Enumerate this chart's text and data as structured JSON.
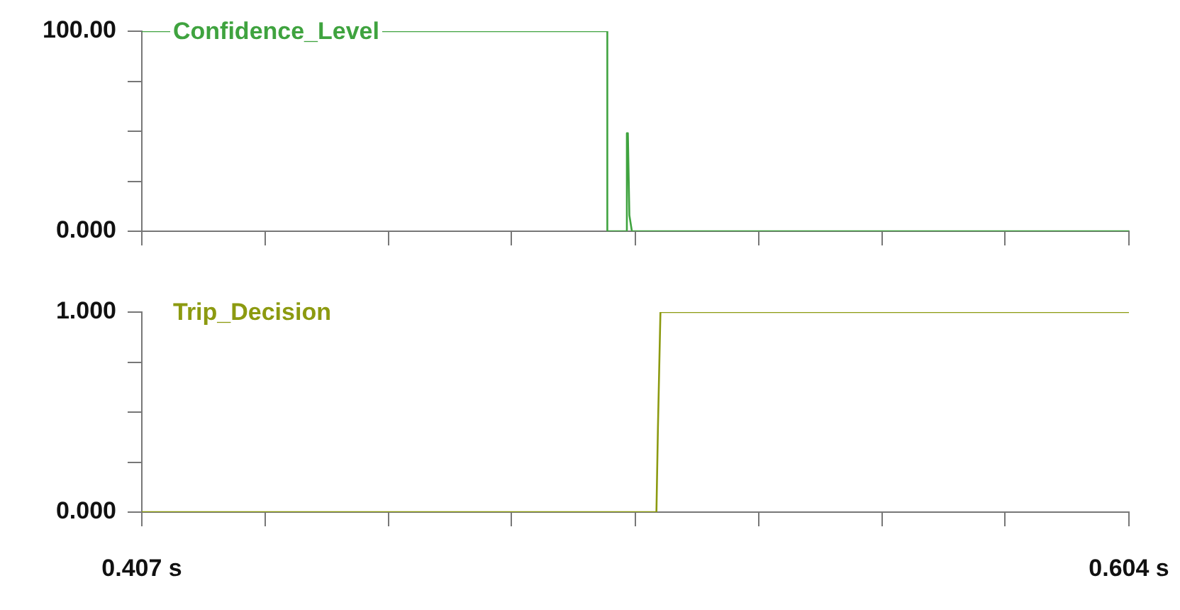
{
  "chart_data": [
    {
      "type": "line",
      "tick_labels": "y",
      "marker": "none",
      "xlim": [
        0.407,
        0.604
      ],
      "ylim": [
        0,
        100
      ],
      "xticks": [
        {
          "value": 0.407,
          "label": null
        },
        {
          "value": 0.4316,
          "label": null
        },
        {
          "value": 0.4563,
          "label": null
        },
        {
          "value": 0.4808,
          "label": null
        },
        {
          "value": 0.5055,
          "label": null
        },
        {
          "value": 0.5301,
          "label": null
        },
        {
          "value": 0.5548,
          "label": null
        },
        {
          "value": 0.5793,
          "label": null
        },
        {
          "value": 0.604,
          "label": null
        }
      ],
      "yticks": [
        {
          "value": 0,
          "label": "0.000"
        },
        {
          "value": 25,
          "label": null
        },
        {
          "value": 50,
          "label": null
        },
        {
          "value": 75,
          "label": null
        },
        {
          "value": 100,
          "label": "100.00"
        }
      ],
      "series": [
        {
          "name": "Confidence_Level",
          "color": "#3fa33f",
          "x": [
            0.407,
            0.4999,
            0.4999,
            0.5037,
            0.5038,
            0.504,
            0.5043,
            0.5048,
            0.604
          ],
          "values": [
            100,
            100,
            0,
            0,
            49,
            49,
            8,
            0,
            0
          ]
        }
      ]
    },
    {
      "type": "line",
      "marker": "none",
      "xlim": [
        0.407,
        0.604
      ],
      "ylim": [
        0,
        1
      ],
      "xticks": [
        {
          "value": 0.407,
          "label": "0.407 s"
        },
        {
          "value": 0.4316,
          "label": null
        },
        {
          "value": 0.4563,
          "label": null
        },
        {
          "value": 0.4808,
          "label": null
        },
        {
          "value": 0.5055,
          "label": null
        },
        {
          "value": 0.5301,
          "label": null
        },
        {
          "value": 0.5548,
          "label": null
        },
        {
          "value": 0.5793,
          "label": null
        },
        {
          "value": 0.604,
          "label": "0.604 s"
        }
      ],
      "yticks": [
        {
          "value": 0,
          "label": "0.000"
        },
        {
          "value": 0.25,
          "label": null
        },
        {
          "value": 0.5,
          "label": null
        },
        {
          "value": 0.75,
          "label": null
        },
        {
          "value": 1,
          "label": "1.000"
        }
      ],
      "series": [
        {
          "name": "Trip_Decision",
          "color": "#8c9a10",
          "x": [
            0.407,
            0.5097,
            0.51,
            0.5105,
            0.604
          ],
          "values": [
            0,
            0,
            0.42,
            1,
            1
          ]
        }
      ]
    }
  ]
}
